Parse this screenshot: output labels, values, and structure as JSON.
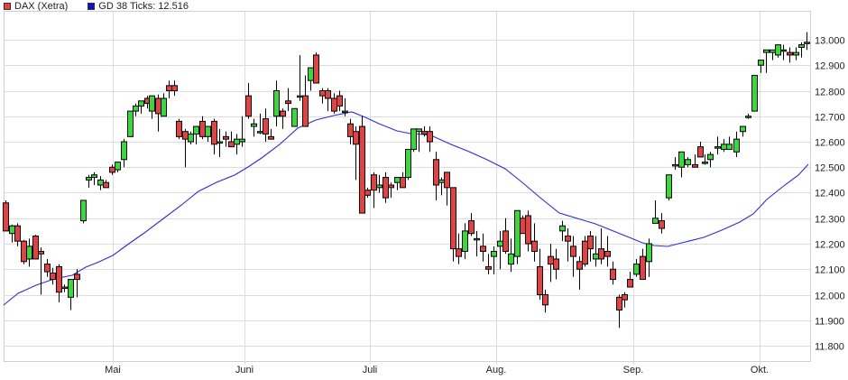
{
  "legend": {
    "series1": {
      "label": "DAX (Xetra)",
      "color": "#e84040"
    },
    "series2": {
      "label": "GD 38 Ticks: 12.516",
      "color": "#1010d0"
    }
  },
  "chart_data": {
    "type": "candlestick",
    "title": "",
    "xlabel": "",
    "ylabel": "",
    "ylim": [
      11750,
      13050
    ],
    "yticks": [
      "13.000",
      "12.900",
      "12.800",
      "12.700",
      "12.600",
      "12.500",
      "12.400",
      "12.300",
      "12.200",
      "12.100",
      "12.000",
      "11.900",
      "11.800"
    ],
    "ytick_values": [
      13000,
      12900,
      12800,
      12700,
      12600,
      12500,
      12400,
      12300,
      12200,
      12100,
      12000,
      11900,
      11800
    ],
    "xticks": [
      {
        "label": "Mai",
        "x": 125
      },
      {
        "label": "Juni",
        "x": 271
      },
      {
        "label": "Juli",
        "x": 410
      },
      {
        "label": "Aug.",
        "x": 550
      },
      {
        "label": "Sep.",
        "x": 702
      },
      {
        "label": "Okt.",
        "x": 842
      }
    ],
    "up_color": "#33dd33",
    "down_color": "#e84040",
    "ma_color": "#2a2aee",
    "ma_label": "GD 38 Ticks",
    "ma_last_value": 12516,
    "candles_xohlc": [
      [
        6,
        12360,
        12370,
        12250,
        12250
      ],
      [
        13,
        12240,
        12275,
        12205,
        12270
      ],
      [
        19,
        12270,
        12280,
        12190,
        12210
      ],
      [
        26,
        12210,
        12215,
        12120,
        12130
      ],
      [
        32,
        12140,
        12220,
        12110,
        12190
      ],
      [
        39,
        12230,
        12235,
        12180,
        12140
      ],
      [
        45,
        12170,
        12185,
        12000,
        12160
      ],
      [
        52,
        12120,
        12140,
        12070,
        12090
      ],
      [
        58,
        12085,
        12105,
        12040,
        12060
      ],
      [
        65,
        12110,
        12120,
        11970,
        12010
      ],
      [
        71,
        12030,
        12040,
        12010,
        12030
      ],
      [
        78,
        11990,
        12060,
        11940,
        12060
      ],
      [
        85,
        12080,
        12100,
        11990,
        12060
      ],
      [
        92,
        12290,
        12370,
        12280,
        12370
      ],
      [
        98,
        12450,
        12470,
        12420,
        12460
      ],
      [
        104,
        12460,
        12480,
        12430,
        12470
      ],
      [
        111,
        12430,
        12465,
        12410,
        12450
      ],
      [
        117,
        12440,
        12450,
        12420,
        12420
      ],
      [
        124,
        12500,
        12510,
        12470,
        12480
      ],
      [
        130,
        12490,
        12520,
        12480,
        12520
      ],
      [
        137,
        12530,
        12610,
        12500,
        12600
      ],
      [
        144,
        12620,
        12720,
        12620,
        12720
      ],
      [
        150,
        12720,
        12750,
        12700,
        12740
      ],
      [
        156,
        12740,
        12760,
        12710,
        12760
      ],
      [
        163,
        12770,
        12780,
        12730,
        12750
      ],
      [
        168,
        12720,
        12780,
        12690,
        12780
      ],
      [
        175,
        12770,
        12785,
        12640,
        12710
      ],
      [
        181,
        12700,
        12790,
        12700,
        12770
      ],
      [
        187,
        12820,
        12840,
        12770,
        12800
      ],
      [
        193,
        12820,
        12840,
        12780,
        12800
      ],
      [
        198,
        12680,
        12690,
        12610,
        12620
      ],
      [
        205,
        12640,
        12650,
        12500,
        12610
      ],
      [
        211,
        12600,
        12640,
        12590,
        12630
      ],
      [
        217,
        12630,
        12660,
        12590,
        12660
      ],
      [
        224,
        12680,
        12700,
        12610,
        12620
      ],
      [
        230,
        12620,
        12660,
        12600,
        12660
      ],
      [
        237,
        12680,
        12690,
        12550,
        12590
      ],
      [
        243,
        12600,
        12650,
        12540,
        12600
      ],
      [
        250,
        12620,
        12640,
        12580,
        12610
      ],
      [
        256,
        12600,
        12640,
        12590,
        12580
      ],
      [
        262,
        12590,
        12630,
        12550,
        12610
      ],
      [
        268,
        12600,
        12700,
        12580,
        12610
      ],
      [
        275,
        12780,
        12830,
        12690,
        12700
      ],
      [
        281,
        12660,
        12690,
        12620,
        12670
      ],
      [
        288,
        12640,
        12710,
        12630,
        12640
      ],
      [
        294,
        12690,
        12730,
        12600,
        12630
      ],
      [
        300,
        12620,
        12650,
        12610,
        12610
      ],
      [
        306,
        12700,
        12840,
        12660,
        12800
      ],
      [
        313,
        12720,
        12730,
        12650,
        12700
      ],
      [
        319,
        12760,
        12810,
        12720,
        12750
      ],
      [
        326,
        12660,
        12680,
        12670,
        12730
      ],
      [
        332,
        12780,
        12940,
        12760,
        12780
      ],
      [
        338,
        12780,
        12860,
        12660,
        12660
      ],
      [
        344,
        12840,
        12890,
        12800,
        12890
      ],
      [
        350,
        12940,
        12950,
        12830,
        12830
      ],
      [
        357,
        12800,
        12810,
        12750,
        12780
      ],
      [
        363,
        12800,
        12810,
        12720,
        12770
      ],
      [
        370,
        12770,
        12790,
        12710,
        12720
      ],
      [
        376,
        12780,
        12800,
        12720,
        12740
      ],
      [
        382,
        12720,
        12770,
        12700,
        12720
      ],
      [
        388,
        12670,
        12690,
        12590,
        12620
      ],
      [
        394,
        12640,
        12660,
        12450,
        12590
      ],
      [
        401,
        12660,
        12700,
        12320,
        12320
      ],
      [
        407,
        12410,
        12420,
        12380,
        12390
      ],
      [
        414,
        12470,
        12480,
        12340,
        12410
      ],
      [
        420,
        12420,
        12470,
        12400,
        12430
      ],
      [
        427,
        12460,
        12480,
        12360,
        12380
      ],
      [
        433,
        12430,
        12440,
        12380,
        12420
      ],
      [
        440,
        12440,
        12460,
        12410,
        12460
      ],
      [
        446,
        12460,
        12480,
        12420,
        12420
      ],
      [
        452,
        12460,
        12530,
        12450,
        12570
      ],
      [
        458,
        12570,
        12640,
        12560,
        12650
      ],
      [
        464,
        12640,
        12650,
        12560,
        12650
      ],
      [
        470,
        12640,
        12660,
        12620,
        12630
      ],
      [
        476,
        12640,
        12660,
        12560,
        12600
      ],
      [
        483,
        12530,
        12560,
        12370,
        12430
      ],
      [
        489,
        12440,
        12460,
        12390,
        12450
      ],
      [
        495,
        12480,
        12480,
        12350,
        12420
      ],
      [
        502,
        12420,
        12380,
        12130,
        12180
      ],
      [
        508,
        12180,
        12240,
        12120,
        12150
      ],
      [
        515,
        12170,
        12280,
        12140,
        12250
      ],
      [
        522,
        12290,
        12320,
        12230,
        12240
      ],
      [
        528,
        12220,
        12250,
        12150,
        12220
      ],
      [
        535,
        12190,
        12240,
        12130,
        12170
      ],
      [
        541,
        12110,
        12160,
        12080,
        12100
      ],
      [
        547,
        12150,
        12190,
        12080,
        12170
      ],
      [
        554,
        12190,
        12250,
        12100,
        12210
      ],
      [
        560,
        12250,
        12300,
        12160,
        12170
      ],
      [
        566,
        12120,
        12220,
        12090,
        12160
      ],
      [
        573,
        12150,
        12330,
        12120,
        12330
      ],
      [
        579,
        12300,
        12310,
        12240,
        12240
      ],
      [
        585,
        12310,
        12330,
        12170,
        12200
      ],
      [
        592,
        12210,
        12280,
        12130,
        12170
      ],
      [
        598,
        12110,
        12180,
        11980,
        12000
      ],
      [
        604,
        12000,
        12020,
        11930,
        11960
      ],
      [
        610,
        12150,
        12200,
        12050,
        12120
      ],
      [
        616,
        12140,
        12180,
        12060,
        12100
      ],
      [
        623,
        12250,
        12290,
        12210,
        12270
      ],
      [
        629,
        12230,
        12260,
        12130,
        12210
      ],
      [
        635,
        12190,
        12230,
        12070,
        12150
      ],
      [
        642,
        12130,
        12150,
        12020,
        12100
      ],
      [
        648,
        12210,
        12230,
        12110,
        12120
      ],
      [
        654,
        12230,
        12250,
        12130,
        12180
      ],
      [
        660,
        12140,
        12230,
        12110,
        12160
      ],
      [
        666,
        12180,
        12260,
        12120,
        12140
      ],
      [
        673,
        12170,
        12230,
        12110,
        12150
      ],
      [
        679,
        12100,
        12130,
        12040,
        12060
      ],
      [
        686,
        11990,
        12000,
        11870,
        11940
      ],
      [
        692,
        12000,
        12010,
        11950,
        11980
      ],
      [
        698,
        12060,
        12090,
        12040,
        12030
      ],
      [
        705,
        12080,
        12140,
        12070,
        12120
      ],
      [
        712,
        12150,
        12180,
        12060,
        12060
      ],
      [
        719,
        12130,
        12220,
        12070,
        12200
      ],
      [
        726,
        12280,
        12370,
        12280,
        12300
      ],
      [
        733,
        12290,
        12320,
        12240,
        12260
      ],
      [
        741,
        12380,
        12470,
        12370,
        12470
      ],
      [
        748,
        12510,
        12540,
        12490,
        12510
      ],
      [
        755,
        12500,
        12540,
        12460,
        12560
      ],
      [
        762,
        12510,
        12540,
        12500,
        12530
      ],
      [
        770,
        12510,
        12550,
        12510,
        12500
      ],
      [
        776,
        12580,
        12600,
        12540,
        12540
      ],
      [
        781,
        12520,
        12550,
        12510,
        12520
      ],
      [
        787,
        12530,
        12560,
        12500,
        12550
      ],
      [
        795,
        12580,
        12620,
        12550,
        12580
      ],
      [
        802,
        12570,
        12610,
        12560,
        12590
      ],
      [
        808,
        12570,
        12620,
        12570,
        12590
      ],
      [
        816,
        12560,
        12640,
        12540,
        12610
      ],
      [
        823,
        12640,
        12660,
        12620,
        12660
      ],
      [
        829,
        12700,
        12710,
        12690,
        12700
      ],
      [
        836,
        12720,
        12850,
        12720,
        12860
      ],
      [
        843,
        12900,
        12910,
        12870,
        12920
      ],
      [
        849,
        12950,
        12960,
        12870,
        12960
      ],
      [
        856,
        12950,
        12960,
        12920,
        12960
      ],
      [
        862,
        12940,
        12970,
        12930,
        12980
      ],
      [
        868,
        12960,
        12980,
        12920,
        12960
      ],
      [
        875,
        12950,
        12970,
        12910,
        12940
      ],
      [
        882,
        12940,
        12970,
        12920,
        12950
      ],
      [
        888,
        12970,
        12990,
        12930,
        12980
      ],
      [
        894,
        12990,
        13030,
        12960,
        12990
      ]
    ],
    "ma_points_xy": [
      [
        4,
        338
      ],
      [
        20,
        325
      ],
      [
        40,
        316
      ],
      [
        60,
        309
      ],
      [
        80,
        305
      ],
      [
        95,
        296
      ],
      [
        110,
        290
      ],
      [
        125,
        283
      ],
      [
        140,
        272
      ],
      [
        160,
        258
      ],
      [
        180,
        243
      ],
      [
        200,
        228
      ],
      [
        220,
        212
      ],
      [
        240,
        202
      ],
      [
        260,
        194
      ],
      [
        275,
        185
      ],
      [
        290,
        175
      ],
      [
        310,
        160
      ],
      [
        330,
        142
      ],
      [
        350,
        133
      ],
      [
        370,
        128
      ],
      [
        390,
        124
      ],
      [
        405,
        130
      ],
      [
        420,
        137
      ],
      [
        440,
        145
      ],
      [
        455,
        148
      ],
      [
        470,
        149
      ],
      [
        480,
        151
      ],
      [
        500,
        160
      ],
      [
        520,
        168
      ],
      [
        540,
        177
      ],
      [
        560,
        187
      ],
      [
        580,
        203
      ],
      [
        600,
        220
      ],
      [
        620,
        236
      ],
      [
        640,
        242
      ],
      [
        660,
        248
      ],
      [
        680,
        256
      ],
      [
        700,
        264
      ],
      [
        712,
        269
      ],
      [
        725,
        272
      ],
      [
        740,
        273
      ],
      [
        760,
        268
      ],
      [
        780,
        263
      ],
      [
        800,
        255
      ],
      [
        820,
        246
      ],
      [
        835,
        237
      ],
      [
        850,
        221
      ],
      [
        870,
        205
      ],
      [
        885,
        194
      ],
      [
        896,
        182
      ]
    ]
  }
}
